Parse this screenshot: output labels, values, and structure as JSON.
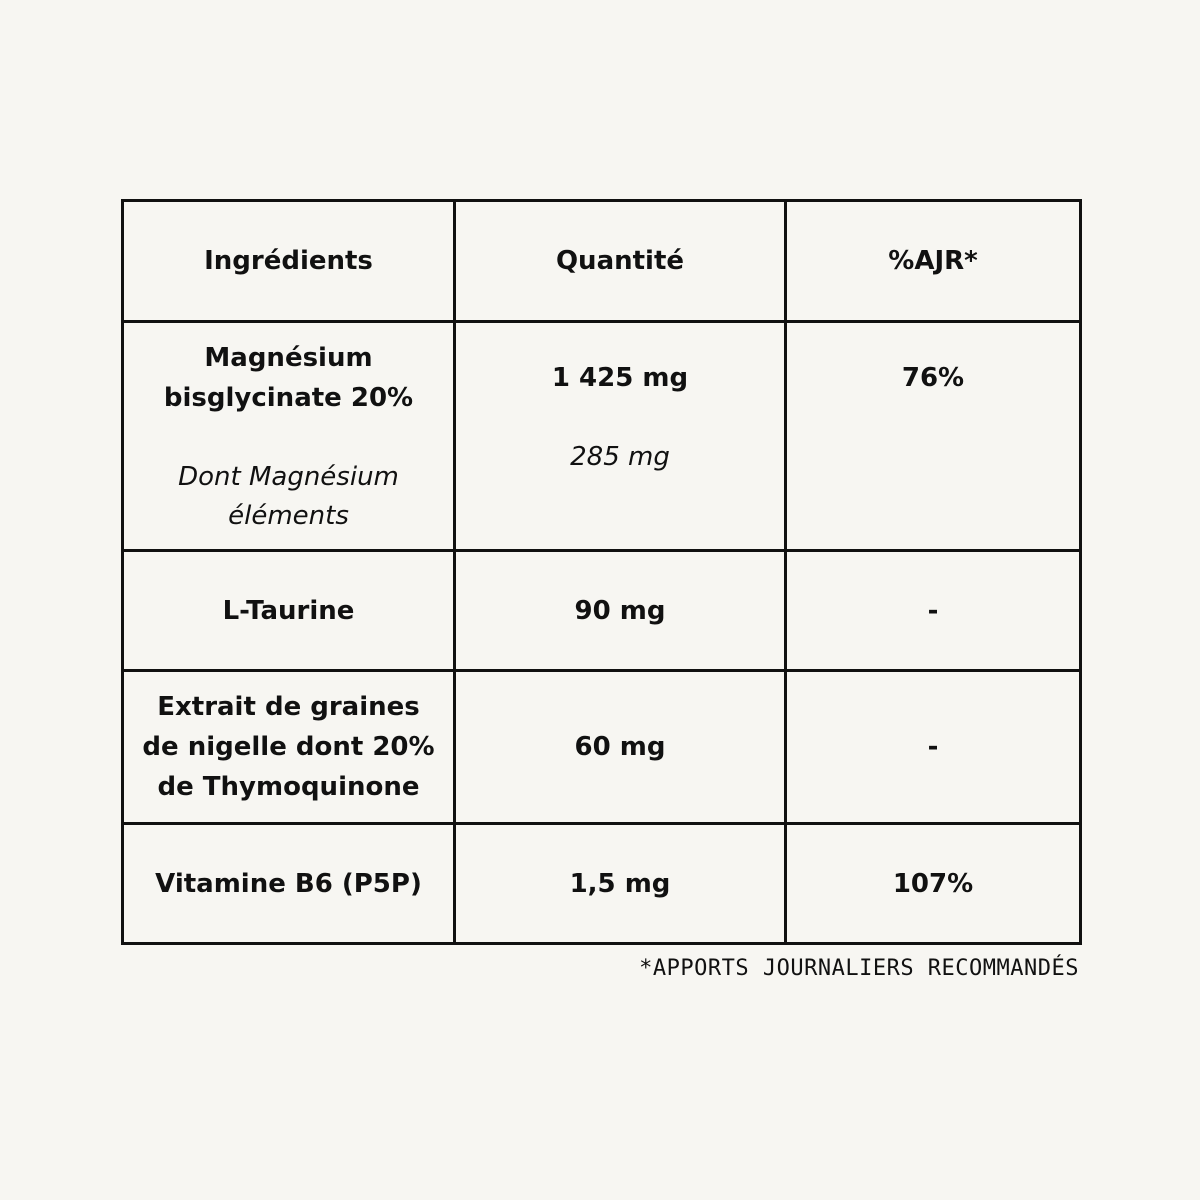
{
  "table": {
    "headers": [
      "Ingrédients",
      "Quantité",
      "%AJR*"
    ],
    "rows": [
      {
        "ingredient": "Magnésium\nbisglycinate 20%",
        "ingredient_sub": "Dont Magnésium\néléments",
        "quantity": "1 425 mg",
        "quantity_sub": "285 mg",
        "ajr": "76%"
      },
      {
        "ingredient": "L-Taurine",
        "quantity": "90 mg",
        "ajr": "-"
      },
      {
        "ingredient": "Extrait de graines\nde nigelle dont 20%\nde Thymoquinone",
        "quantity": "60 mg",
        "ajr": "-"
      },
      {
        "ingredient": "Vitamine B6 (P5P)",
        "quantity": "1,5 mg",
        "ajr": "107%"
      }
    ]
  },
  "footnote": "*APPORTS JOURNALIERS RECOMMANDÉS"
}
